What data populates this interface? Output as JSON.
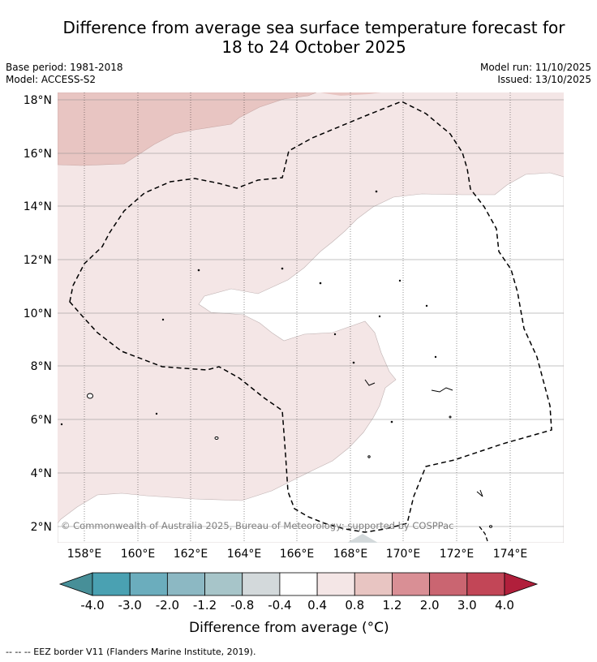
{
  "title_line1": "Difference from average sea surface temperature forecast for",
  "title_line2": "18 to 24 October 2025",
  "meta": {
    "base_period": "Base period: 1981-2018",
    "model": "Model: ACCESS-S2",
    "model_run": "Model run: 11/10/2025",
    "issued": "Issued: 13/10/2025"
  },
  "map": {
    "lon_labels": [
      "158°E",
      "160°E",
      "162°E",
      "164°E",
      "166°E",
      "168°E",
      "170°E",
      "172°E",
      "174°E"
    ],
    "lat_labels": [
      "18°N",
      "16°N",
      "14°N",
      "12°N",
      "10°N",
      "8°N",
      "6°N",
      "4°N",
      "2°N"
    ],
    "copyright": "© Commonwealth of Australia 2025, Bureau of Meteorology; supported by COSPPac",
    "colors": {
      "anomaly_0_4_0_8": "#f4e6e6",
      "anomaly_0_8_1_2": "#e8c5c2",
      "neutral": "#ffffff"
    }
  },
  "colorbar": {
    "title": "Difference from average (°C)",
    "tick_labels": [
      "-4.0",
      "-3.0",
      "-2.0",
      "-1.2",
      "-0.8",
      "-0.4",
      "0.4",
      "0.8",
      "1.2",
      "2.0",
      "3.0",
      "4.0"
    ],
    "colors": [
      "#478f98",
      "#4aa1b2",
      "#6badbd",
      "#8cb8c3",
      "#a7c5c9",
      "#d3d9db",
      "#ffffff",
      "#f4e6e6",
      "#e8c5c2",
      "#d98f95",
      "#ca6571",
      "#c24657",
      "#b11f3b"
    ]
  },
  "footnote": "-- -- -- EEZ border V11 (Flanders Marine Institute, 2019)."
}
